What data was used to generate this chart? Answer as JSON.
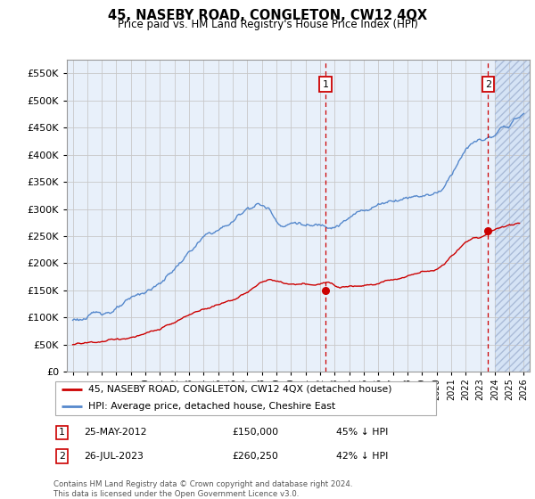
{
  "title": "45, NASEBY ROAD, CONGLETON, CW12 4QX",
  "subtitle": "Price paid vs. HM Land Registry's House Price Index (HPI)",
  "red_label": "45, NASEBY ROAD, CONGLETON, CW12 4QX (detached house)",
  "blue_label": "HPI: Average price, detached house, Cheshire East",
  "ann1_date": "25-MAY-2012",
  "ann1_price": "£150,000",
  "ann1_pct": "45% ↓ HPI",
  "ann2_date": "26-JUL-2023",
  "ann2_price": "£260,250",
  "ann2_pct": "42% ↓ HPI",
  "footer": "Contains HM Land Registry data © Crown copyright and database right 2024.\nThis data is licensed under the Open Government Licence v3.0.",
  "ylim": [
    0,
    575000
  ],
  "yticks": [
    0,
    50000,
    100000,
    150000,
    200000,
    250000,
    300000,
    350000,
    400000,
    450000,
    500000,
    550000
  ],
  "background_color": "#e8f0fa",
  "hatch_bg_color": "#d5e3f5",
  "grid_color": "#c8c8c8",
  "red_color": "#cc0000",
  "blue_color": "#5588cc",
  "vline_color": "#cc0000",
  "vline1_x": 2012.375,
  "vline2_x": 2023.542,
  "marker1_price": 150000,
  "marker2_price": 260250,
  "hatch_start": 2024.0,
  "xlim_left": 1994.6,
  "xlim_right": 2026.4
}
